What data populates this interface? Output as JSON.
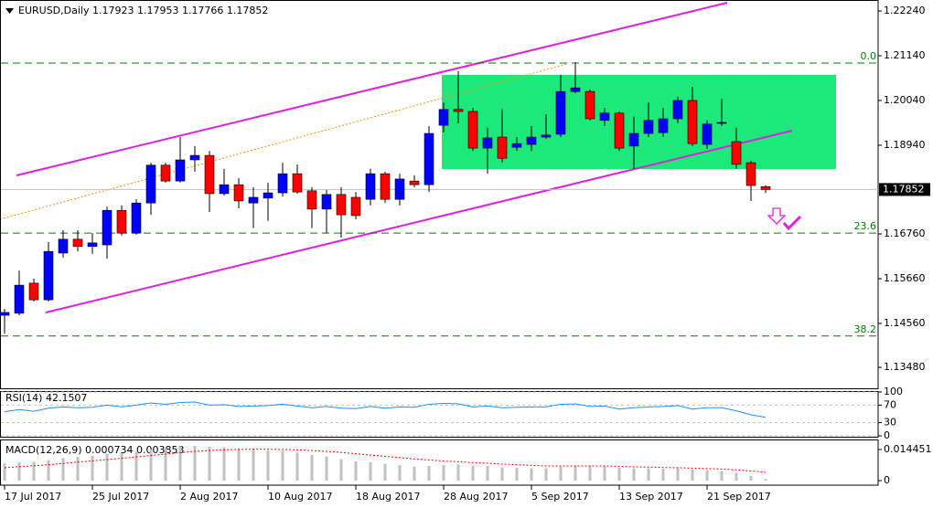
{
  "chart_data": [
    {
      "type": "candlestick",
      "title": "EURUSD,Daily  1.17923 1.17953 1.17766 1.17852",
      "up_color": "#0000ff",
      "down_color": "#ff0000",
      "wick_color": "#000000",
      "ylim": [
        1.12965,
        1.2251
      ],
      "yticks": [
        {
          "value": 1.2224,
          "label": "1.22240"
        },
        {
          "value": 1.2114,
          "label": "1.21140"
        },
        {
          "value": 1.2004,
          "label": "1.20040"
        },
        {
          "value": 1.1894,
          "label": "1.18940"
        },
        {
          "value": 1.1676,
          "label": "1.16760"
        },
        {
          "value": 1.1566,
          "label": "1.15660"
        },
        {
          "value": 1.1456,
          "label": "1.14560"
        },
        {
          "value": 1.1348,
          "label": "1.13480"
        }
      ],
      "current_price": {
        "value": 1.17852,
        "label": "1.17852"
      },
      "fib_color": "#008000",
      "fib_levels": [
        {
          "label": "0.0",
          "value": 1.2096
        },
        {
          "label": "23.6",
          "value": 1.1678
        },
        {
          "label": "38.2",
          "value": 1.1425
        }
      ],
      "categories": [
        "17 Jul 2017",
        null,
        null,
        null,
        null,
        null,
        "25 Jul 2017",
        null,
        null,
        null,
        null,
        null,
        "2 Aug 2017",
        null,
        null,
        null,
        null,
        null,
        "10 Aug 2017",
        null,
        null,
        null,
        null,
        null,
        "18 Aug 2017",
        null,
        null,
        null,
        null,
        null,
        "28 Aug 2017",
        null,
        null,
        null,
        null,
        null,
        "5 Sep 2017",
        null,
        null,
        null,
        null,
        null,
        "13 Sep 2017",
        null,
        null,
        null,
        null,
        null,
        "21 Sep 2017",
        null,
        null,
        null,
        null
      ],
      "candles": [
        [
          1.1476,
          1.1492,
          1.1431,
          1.1483
        ],
        [
          1.1481,
          1.1586,
          1.1476,
          1.155
        ],
        [
          1.1555,
          1.1566,
          1.151,
          1.1514
        ],
        [
          1.1514,
          1.1656,
          1.151,
          1.1633
        ],
        [
          1.1629,
          1.1685,
          1.1618,
          1.1663
        ],
        [
          1.1663,
          1.1685,
          1.1633,
          1.1645
        ],
        [
          1.1645,
          1.1678,
          1.1627,
          1.1654
        ],
        [
          1.1649,
          1.1743,
          1.1615,
          1.1734
        ],
        [
          1.1734,
          1.1746,
          1.1672,
          1.1678
        ],
        [
          1.1678,
          1.1761,
          1.1674,
          1.1752
        ],
        [
          1.1752,
          1.1851,
          1.1723,
          1.1845
        ],
        [
          1.1845,
          1.1851,
          1.1802,
          1.1806
        ],
        [
          1.1806,
          1.1914,
          1.1802,
          1.1858
        ],
        [
          1.1858,
          1.1892,
          1.1829,
          1.1869
        ],
        [
          1.1869,
          1.188,
          1.173,
          1.1775
        ],
        [
          1.1775,
          1.1836,
          1.177,
          1.1797
        ],
        [
          1.1797,
          1.1813,
          1.1739,
          1.1757
        ],
        [
          1.1752,
          1.1791,
          1.169,
          1.1766
        ],
        [
          1.1764,
          1.1802,
          1.1708,
          1.1777
        ],
        [
          1.1777,
          1.1851,
          1.1768,
          1.1824
        ],
        [
          1.1824,
          1.1847,
          1.1775,
          1.1779
        ],
        [
          1.1782,
          1.1791,
          1.169,
          1.1737
        ],
        [
          1.1737,
          1.1784,
          1.1678,
          1.1773
        ],
        [
          1.1773,
          1.1791,
          1.1667,
          1.1723
        ],
        [
          1.1766,
          1.1779,
          1.1712,
          1.1721
        ],
        [
          1.1761,
          1.1836,
          1.1746,
          1.1824
        ],
        [
          1.1824,
          1.1829,
          1.1752,
          1.1761
        ],
        [
          1.1761,
          1.1824,
          1.1746,
          1.1811
        ],
        [
          1.1806,
          1.182,
          1.1791,
          1.1797
        ],
        [
          1.1797,
          1.1941,
          1.1779,
          1.1923
        ],
        [
          1.1943,
          1.1999,
          1.1925,
          1.1982
        ],
        [
          1.1982,
          1.2076,
          1.1948,
          1.1977
        ],
        [
          1.1977,
          1.1986,
          1.188,
          1.1887
        ],
        [
          1.1887,
          1.1937,
          1.1824,
          1.1912
        ],
        [
          1.1914,
          1.1982,
          1.1851,
          1.1862
        ],
        [
          1.1889,
          1.1914,
          1.188,
          1.1898
        ],
        [
          1.1896,
          1.1941,
          1.188,
          1.1914
        ],
        [
          1.1914,
          1.197,
          1.191,
          1.1919
        ],
        [
          1.1921,
          1.2067,
          1.1914,
          1.2026
        ],
        [
          1.2026,
          1.2098,
          1.2022,
          1.2035
        ],
        [
          1.2026,
          1.2031,
          1.1955,
          1.1959
        ],
        [
          1.1955,
          1.1986,
          1.1941,
          1.1973
        ],
        [
          1.1973,
          1.1977,
          1.188,
          1.1887
        ],
        [
          1.1892,
          1.1964,
          1.1836,
          1.1923
        ],
        [
          1.1923,
          1.1999,
          1.1914,
          1.1955
        ],
        [
          1.1925,
          1.1986,
          1.1914,
          1.1959
        ],
        [
          1.1959,
          1.2013,
          1.1948,
          1.2004
        ],
        [
          1.2004,
          1.2038,
          1.1892,
          1.1898
        ],
        [
          1.1896,
          1.1955,
          1.1885,
          1.1946
        ],
        [
          1.1948,
          1.2008,
          1.1941,
          1.195
        ],
        [
          1.1903,
          1.1937,
          1.1836,
          1.1847
        ],
        [
          1.1851,
          1.1856,
          1.1757,
          1.1795
        ],
        [
          1.17923,
          1.17953,
          1.17766,
          1.17852
        ]
      ]
    },
    {
      "type": "line",
      "title": "RSI(14) 42.1507",
      "color": "#1e90ff",
      "level_color": "#c0c0c0",
      "ylim": [
        0,
        100
      ],
      "yticks": [
        100,
        70,
        30,
        0
      ],
      "values": [
        55,
        60,
        56,
        63,
        66,
        64,
        65,
        70,
        66,
        70,
        75,
        72,
        76,
        77,
        70,
        71,
        67,
        68,
        69,
        72,
        68,
        64,
        67,
        63,
        62,
        67,
        63,
        66,
        65,
        72,
        74,
        73,
        66,
        68,
        64,
        65,
        66,
        66,
        72,
        73,
        67,
        68,
        61,
        64,
        66,
        67,
        69,
        61,
        64,
        64,
        57,
        48,
        42.1507
      ]
    },
    {
      "type": "macd",
      "title": "MACD(12,26,9) 0.000734 0.003853",
      "color": "#c0c0c0",
      "signal_color": "#ff0000",
      "ylim": [
        -0.0021,
        0.0187
      ],
      "yticks": [
        0.014451,
        0
      ],
      "values": [
        0.008,
        0.0085,
        0.0088,
        0.0095,
        0.0105,
        0.011,
        0.0115,
        0.0125,
        0.0128,
        0.0135,
        0.0145,
        0.015,
        0.016,
        0.0162,
        0.0158,
        0.0155,
        0.015,
        0.0145,
        0.014,
        0.0138,
        0.013,
        0.012,
        0.0112,
        0.01,
        0.009,
        0.0085,
        0.0078,
        0.0072,
        0.0065,
        0.0068,
        0.0072,
        0.0075,
        0.007,
        0.0068,
        0.0062,
        0.006,
        0.0058,
        0.0058,
        0.0065,
        0.007,
        0.0068,
        0.0066,
        0.006,
        0.0058,
        0.0058,
        0.0056,
        0.0058,
        0.0052,
        0.0048,
        0.0046,
        0.0036,
        0.0022,
        0.000734
      ],
      "signal": [
        0.006,
        0.0065,
        0.0069,
        0.0074,
        0.008,
        0.0086,
        0.0092,
        0.0098,
        0.0104,
        0.011,
        0.0117,
        0.0123,
        0.013,
        0.0136,
        0.014,
        0.0143,
        0.0145,
        0.0146,
        0.0146,
        0.0145,
        0.0143,
        0.014,
        0.0136,
        0.0131,
        0.0125,
        0.0119,
        0.0113,
        0.0107,
        0.0101,
        0.0096,
        0.0091,
        0.0088,
        0.0084,
        0.0081,
        0.0077,
        0.0074,
        0.0071,
        0.0068,
        0.0068,
        0.0068,
        0.0068,
        0.0068,
        0.0066,
        0.0064,
        0.0063,
        0.0061,
        0.006,
        0.0058,
        0.0056,
        0.0054,
        0.005,
        0.0045,
        0.003853
      ]
    }
  ]
}
